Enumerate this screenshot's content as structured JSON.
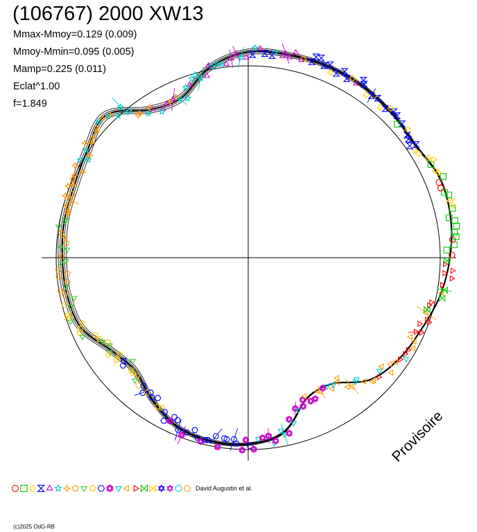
{
  "title": "(106767) 2000 XW13",
  "stats": [
    "Mmax-Mmoy=0.129 (0.009)",
    "Mmoy-Mmin=0.095 (0.005)",
    "Mamp=0.225 (0.011)",
    "Eclat^1.00",
    "f=1.849"
  ],
  "credit": "David Augustin et al.",
  "copyright": "(c)2025 OdG-RB",
  "watermark": "Provisoire",
  "legend_symbols": [
    {
      "shape": "circle",
      "color": "#ff0000"
    },
    {
      "shape": "square",
      "color": "#00cc00"
    },
    {
      "shape": "diamond",
      "color": "#ffcc00"
    },
    {
      "shape": "hourglass",
      "color": "#0000ff"
    },
    {
      "shape": "triangle-up",
      "color": "#cc00cc"
    },
    {
      "shape": "star",
      "color": "#00cccc"
    },
    {
      "shape": "diamond-star",
      "color": "#ff9900"
    },
    {
      "shape": "pentagon",
      "color": "#ff9900"
    },
    {
      "shape": "triangle-down",
      "color": "#33cc33"
    },
    {
      "shape": "pentagon",
      "color": "#ffcc00"
    },
    {
      "shape": "hexagon",
      "color": "#0000ff"
    },
    {
      "shape": "asterisk-circle",
      "color": "#cc00cc"
    },
    {
      "shape": "triangle-down",
      "color": "#00cccc"
    },
    {
      "shape": "triangle-left",
      "color": "#ff9900"
    },
    {
      "shape": "triangle-right",
      "color": "#ff0000"
    },
    {
      "shape": "bowtie",
      "color": "#00cc00"
    },
    {
      "shape": "bowtie",
      "color": "#ffcc00"
    },
    {
      "shape": "asterisk",
      "color": "#0000ff"
    },
    {
      "shape": "asterisk",
      "color": "#cc00cc"
    },
    {
      "shape": "circle",
      "color": "#00cccc"
    },
    {
      "shape": "hexagon",
      "color": "#ff9900"
    }
  ],
  "chart_data": {
    "type": "line",
    "projection": "polar",
    "grid": false,
    "reference_circle": true,
    "series": [
      {
        "color": "#000000",
        "points": [
          {
            "x": 0.0,
            "y": 1.141
          },
          {
            "x": 0.2,
            "y": 1.167
          },
          {
            "x": 0.4,
            "y": 1.174
          },
          {
            "x": 0.6,
            "y": 1.141
          },
          {
            "x": 0.8,
            "y": 1.154
          },
          {
            "x": 1.0,
            "y": 1.167
          },
          {
            "x": 1.2,
            "y": 1.173
          },
          {
            "x": 1.4,
            "y": 1.171
          },
          {
            "x": 1.6,
            "y": 1.165
          },
          {
            "x": 1.8,
            "y": 1.1
          },
          {
            "x": 2.0,
            "y": 0.982
          },
          {
            "x": 2.2,
            "y": 1.007
          },
          {
            "x": 2.4,
            "y": 1.139
          },
          {
            "x": 2.6,
            "y": 1.094
          },
          {
            "x": 2.8,
            "y": 1.065
          },
          {
            "x": 3.0,
            "y": 1.061
          },
          {
            "x": 3.2,
            "y": 1.051
          },
          {
            "x": 3.4,
            "y": 1.046
          },
          {
            "x": 3.6,
            "y": 1.026
          },
          {
            "x": 3.8,
            "y": 0.938
          },
          {
            "x": 4.0,
            "y": 0.905
          },
          {
            "x": 4.2,
            "y": 0.972
          },
          {
            "x": 4.4,
            "y": 1.038
          },
          {
            "x": 4.6,
            "y": 1.06
          },
          {
            "x": 4.8,
            "y": 1.055
          },
          {
            "x": 5.0,
            "y": 1.011
          },
          {
            "x": 5.2,
            "y": 0.864
          },
          {
            "x": 5.4,
            "y": 0.858
          },
          {
            "x": 5.6,
            "y": 0.976
          },
          {
            "x": 5.8,
            "y": 1.028
          },
          {
            "x": 6.0,
            "y": 1.06
          },
          {
            "x": 6.2,
            "y": 1.106
          }
        ]
      }
    ]
  }
}
